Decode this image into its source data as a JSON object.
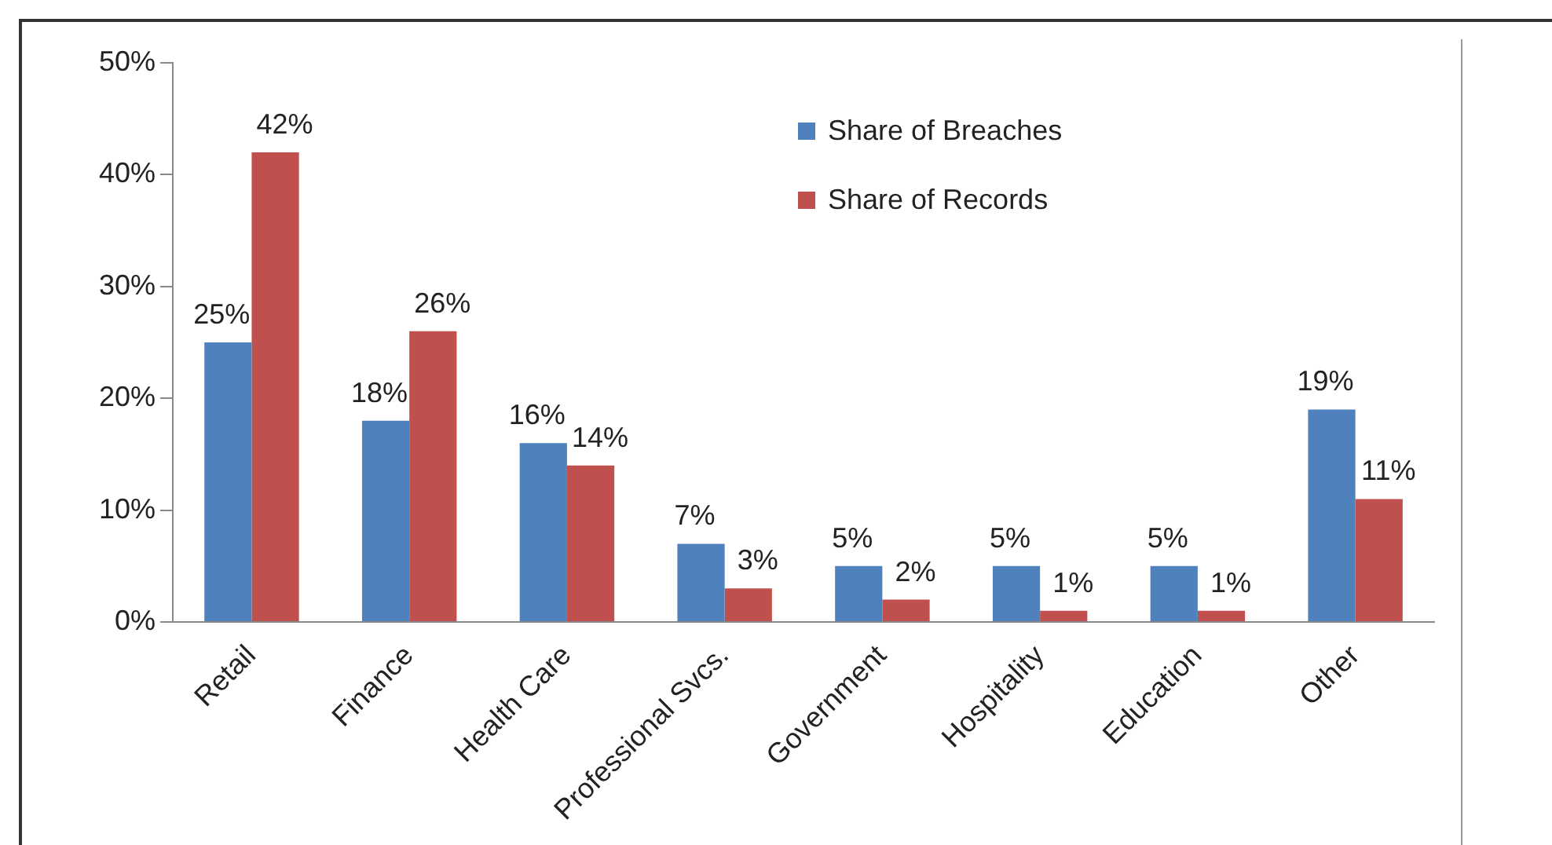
{
  "chart_data": {
    "type": "bar",
    "categories": [
      "Retail",
      "Finance",
      "Health Care",
      "Professional Svcs.",
      "Government",
      "Hospitality",
      "Education",
      "Other"
    ],
    "series": [
      {
        "name": "Share of Breaches",
        "color": "#4f81bd",
        "values": [
          25,
          18,
          16,
          7,
          5,
          5,
          5,
          19
        ],
        "value_labels": [
          "25%",
          "18%",
          "16%",
          "7%",
          "5%",
          "5%",
          "5%",
          "19%"
        ]
      },
      {
        "name": "Share of Records",
        "color": "#c0504d",
        "values": [
          42,
          26,
          14,
          3,
          2,
          1,
          1,
          11
        ],
        "value_labels": [
          "42%",
          "26%",
          "14%",
          "3%",
          "2%",
          "1%",
          "1%",
          "11%"
        ]
      }
    ],
    "ylim": [
      0,
      50
    ],
    "yticks": [
      {
        "value": 0,
        "label": "0%"
      },
      {
        "value": 10,
        "label": "10%"
      },
      {
        "value": 20,
        "label": "20%"
      },
      {
        "value": 30,
        "label": "30%"
      },
      {
        "value": 40,
        "label": "40%"
      },
      {
        "value": 50,
        "label": "50%"
      }
    ],
    "grid": false,
    "legend": "top right"
  }
}
